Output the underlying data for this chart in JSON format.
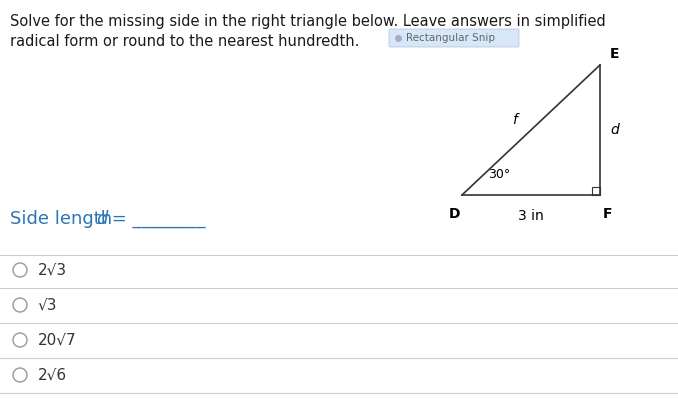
{
  "title_line1": "Solve for the missing side in the right triangle below. Leave answers in simplified",
  "title_line2": "radical form or round to the nearest hundredth.",
  "snip_label": "Rectangular Snip",
  "vertex_labels": {
    "D": "D",
    "F": "F",
    "E": "E"
  },
  "side_labels": {
    "DF": "3 in",
    "EF": "d",
    "DE": "f"
  },
  "angle_label": "30°",
  "side_length_text": "Side length ",
  "side_length_italic": "d",
  "side_length_rest": " = ________",
  "options": [
    "2√3",
    "√3",
    "20√7",
    "2√6"
  ],
  "bg_color": "#ffffff",
  "text_color": "#000000",
  "title_color": "#1a1a1a",
  "side_length_color": "#2e75b6",
  "option_text_color": "#333333",
  "line_color": "#cccccc",
  "snip_bg": "#d6e8f7",
  "snip_text": "#666666",
  "snip_dot_color": "#aaaacc",
  "triangle_color": "#333333",
  "right_angle_color": "#333333"
}
